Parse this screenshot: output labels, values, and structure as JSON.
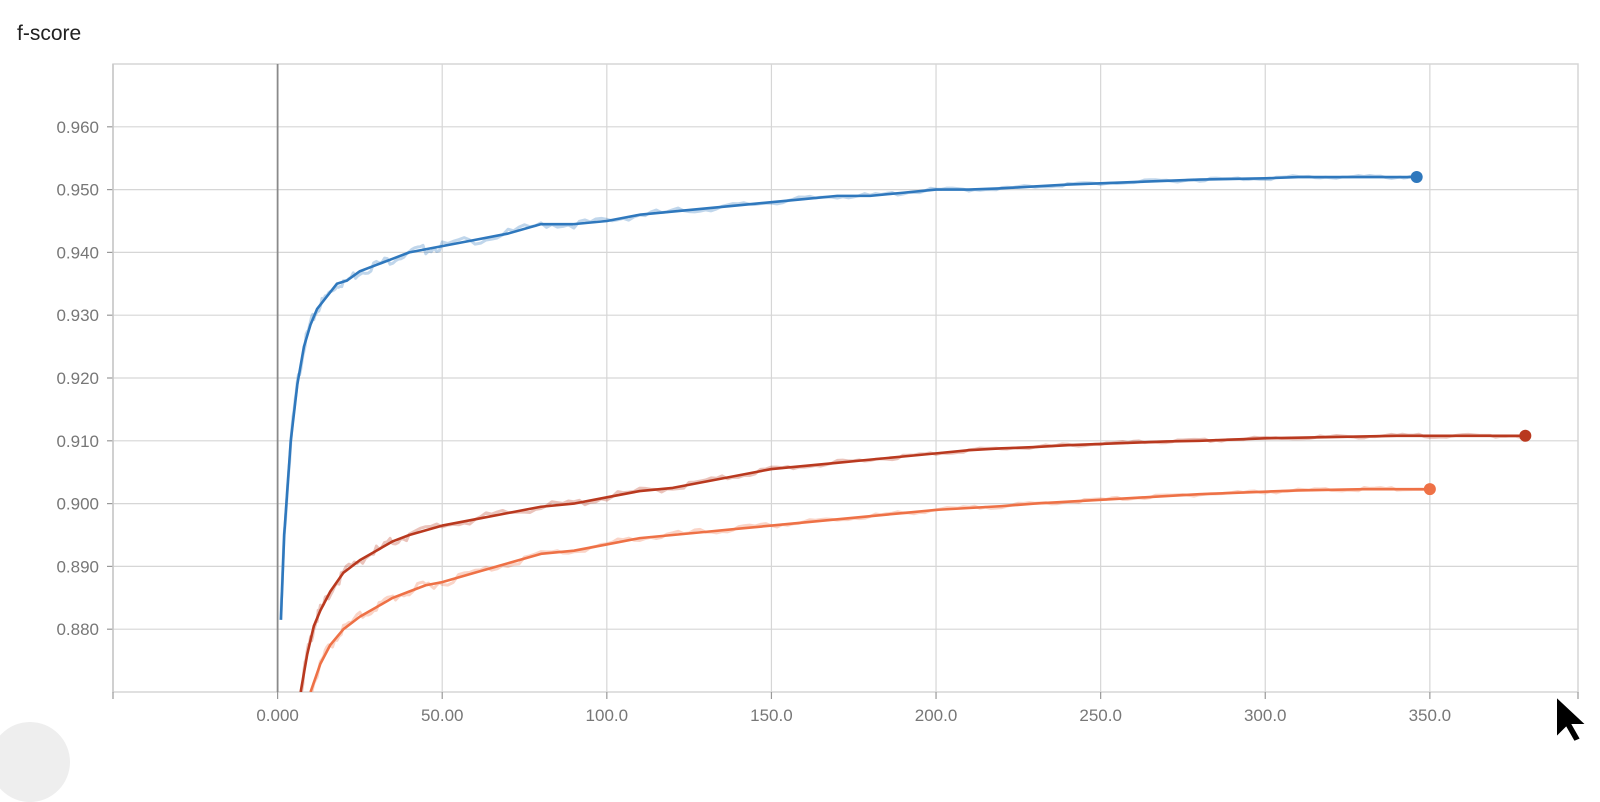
{
  "chart_data": {
    "type": "line",
    "title": "f-score",
    "xlabel": "",
    "ylabel": "",
    "xlim": [
      -50,
      395
    ],
    "ylim": [
      0.87,
      0.97
    ],
    "x_ticks": [
      0,
      50,
      100,
      150,
      200,
      250,
      300,
      350
    ],
    "x_tick_labels": [
      "0.000",
      "50.00",
      "100.0",
      "150.0",
      "200.0",
      "250.0",
      "300.0",
      "350.0"
    ],
    "y_ticks": [
      0.88,
      0.89,
      0.9,
      0.91,
      0.92,
      0.93,
      0.94,
      0.95,
      0.96
    ],
    "y_tick_labels": [
      "0.880",
      "0.890",
      "0.900",
      "0.910",
      "0.920",
      "0.930",
      "0.940",
      "0.950",
      "0.960"
    ],
    "grid": true,
    "legend": "none",
    "series": [
      {
        "color": "#2f78bd",
        "x": [
          1,
          2,
          4,
          6,
          8,
          10,
          12,
          15,
          18,
          21,
          25,
          30,
          35,
          40,
          45,
          50,
          60,
          70,
          80,
          90,
          100,
          110,
          120,
          130,
          140,
          150,
          160,
          170,
          180,
          190,
          200,
          210,
          220,
          230,
          240,
          250,
          260,
          270,
          280,
          290,
          300,
          310,
          320,
          330,
          340,
          346
        ],
        "values": [
          0.8815,
          0.895,
          0.91,
          0.919,
          0.925,
          0.9285,
          0.931,
          0.933,
          0.935,
          0.9355,
          0.937,
          0.938,
          0.939,
          0.94,
          0.9405,
          0.941,
          0.942,
          0.943,
          0.9445,
          0.9445,
          0.945,
          0.946,
          0.9465,
          0.947,
          0.9475,
          0.948,
          0.9485,
          0.949,
          0.949,
          0.9495,
          0.95,
          0.95,
          0.9502,
          0.9505,
          0.9508,
          0.951,
          0.9512,
          0.9514,
          0.9516,
          0.9517,
          0.9518,
          0.952,
          0.952,
          0.952,
          0.952,
          0.952
        ]
      },
      {
        "color": "#b9391f",
        "x": [
          7,
          9,
          11,
          13,
          16,
          20,
          25,
          30,
          35,
          40,
          50,
          60,
          70,
          80,
          90,
          100,
          110,
          120,
          130,
          140,
          150,
          160,
          170,
          180,
          190,
          200,
          210,
          220,
          230,
          240,
          250,
          260,
          270,
          280,
          290,
          300,
          310,
          320,
          330,
          340,
          350,
          360,
          370,
          379
        ],
        "values": [
          0.87,
          0.876,
          0.8805,
          0.883,
          0.886,
          0.889,
          0.891,
          0.8925,
          0.894,
          0.895,
          0.8965,
          0.8975,
          0.8985,
          0.8995,
          0.9,
          0.901,
          0.902,
          0.9025,
          0.9035,
          0.9045,
          0.9055,
          0.906,
          0.9065,
          0.907,
          0.9075,
          0.908,
          0.9085,
          0.9088,
          0.909,
          0.9093,
          0.9095,
          0.9097,
          0.9099,
          0.91,
          0.9102,
          0.9104,
          0.9105,
          0.9106,
          0.9107,
          0.9108,
          0.9108,
          0.9108,
          0.9108,
          0.9108
        ]
      },
      {
        "color": "#ee7146",
        "x": [
          10,
          13,
          16,
          20,
          25,
          30,
          35,
          40,
          45,
          50,
          60,
          70,
          80,
          90,
          100,
          110,
          120,
          130,
          140,
          150,
          160,
          170,
          180,
          190,
          200,
          210,
          220,
          230,
          240,
          250,
          260,
          270,
          280,
          290,
          300,
          310,
          320,
          330,
          340,
          350
        ],
        "values": [
          0.87,
          0.8745,
          0.8775,
          0.88,
          0.882,
          0.8835,
          0.885,
          0.886,
          0.887,
          0.8875,
          0.889,
          0.8905,
          0.892,
          0.8925,
          0.8935,
          0.8945,
          0.895,
          0.8955,
          0.896,
          0.8965,
          0.897,
          0.8975,
          0.898,
          0.8985,
          0.899,
          0.8993,
          0.8996,
          0.9,
          0.9003,
          0.9006,
          0.9009,
          0.9012,
          0.9015,
          0.9017,
          0.9019,
          0.9021,
          0.9022,
          0.9023,
          0.9023,
          0.9023
        ]
      }
    ]
  }
}
